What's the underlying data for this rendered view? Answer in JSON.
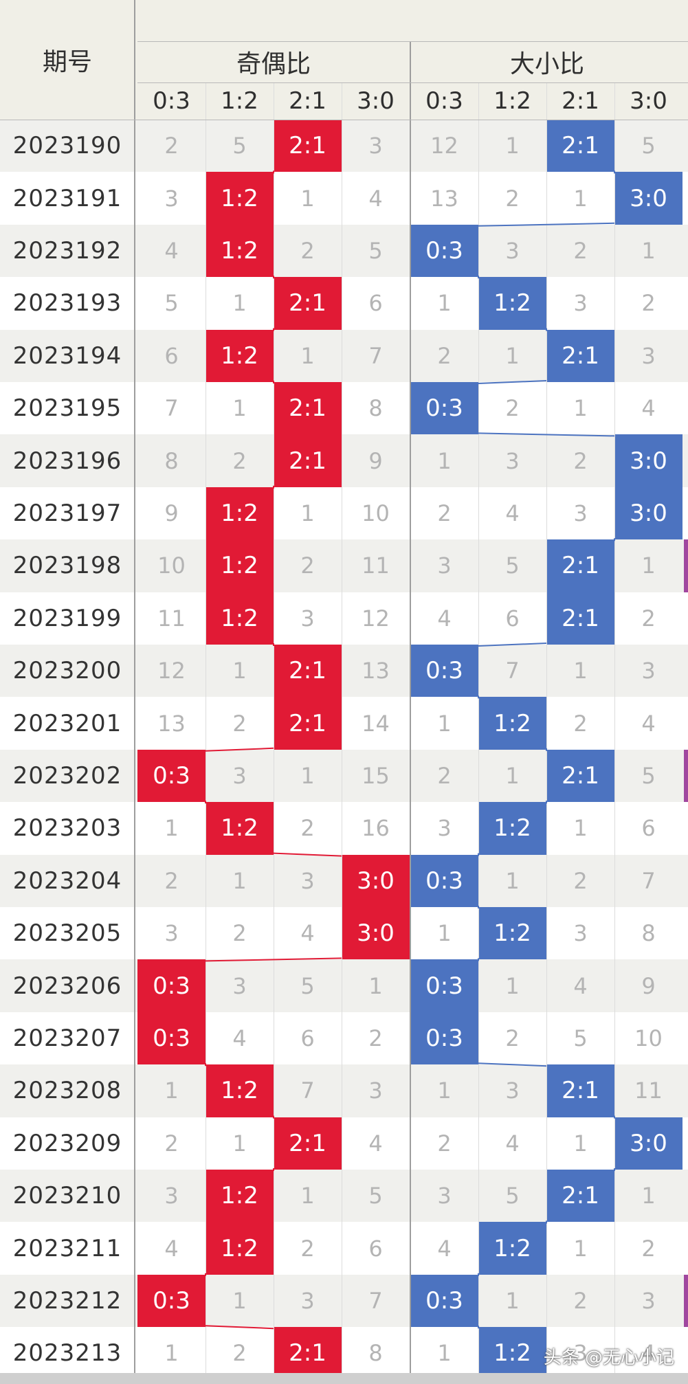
{
  "chart_data": {
    "type": "table",
    "header": {
      "period_label": "期号",
      "groups": [
        {
          "name": "奇偶比",
          "cols": [
            "0:3",
            "1:2",
            "2:1",
            "3:0"
          ]
        },
        {
          "name": "大小比",
          "cols": [
            "0:3",
            "1:2",
            "2:1",
            "3:0"
          ]
        }
      ]
    },
    "colors": {
      "odd_even_hit": "#e11a35",
      "size_hit": "#4c73c0",
      "header_bg": "#f0efe7"
    },
    "rows": [
      {
        "period": "2023190",
        "odd_even": [
          "2",
          "5",
          "2:1",
          "3"
        ],
        "size": [
          "12",
          "1",
          "2:1",
          "5"
        ]
      },
      {
        "period": "2023191",
        "odd_even": [
          "3",
          "1:2",
          "1",
          "4"
        ],
        "size": [
          "13",
          "2",
          "1",
          "3:0"
        ]
      },
      {
        "period": "2023192",
        "odd_even": [
          "4",
          "1:2",
          "2",
          "5"
        ],
        "size": [
          "0:3",
          "3",
          "2",
          "1"
        ]
      },
      {
        "period": "2023193",
        "odd_even": [
          "5",
          "1",
          "2:1",
          "6"
        ],
        "size": [
          "1",
          "1:2",
          "3",
          "2"
        ]
      },
      {
        "period": "2023194",
        "odd_even": [
          "6",
          "1:2",
          "1",
          "7"
        ],
        "size": [
          "2",
          "1",
          "2:1",
          "3"
        ]
      },
      {
        "period": "2023195",
        "odd_even": [
          "7",
          "1",
          "2:1",
          "8"
        ],
        "size": [
          "0:3",
          "2",
          "1",
          "4"
        ]
      },
      {
        "period": "2023196",
        "odd_even": [
          "8",
          "2",
          "2:1",
          "9"
        ],
        "size": [
          "1",
          "3",
          "2",
          "3:0"
        ]
      },
      {
        "period": "2023197",
        "odd_even": [
          "9",
          "1:2",
          "1",
          "10"
        ],
        "size": [
          "2",
          "4",
          "3",
          "3:0"
        ]
      },
      {
        "period": "2023198",
        "odd_even": [
          "10",
          "1:2",
          "2",
          "11"
        ],
        "size": [
          "3",
          "5",
          "2:1",
          "1"
        ]
      },
      {
        "period": "2023199",
        "odd_even": [
          "11",
          "1:2",
          "3",
          "12"
        ],
        "size": [
          "4",
          "6",
          "2:1",
          "2"
        ]
      },
      {
        "period": "2023200",
        "odd_even": [
          "12",
          "1",
          "2:1",
          "13"
        ],
        "size": [
          "0:3",
          "7",
          "1",
          "3"
        ]
      },
      {
        "period": "2023201",
        "odd_even": [
          "13",
          "2",
          "2:1",
          "14"
        ],
        "size": [
          "1",
          "1:2",
          "2",
          "4"
        ]
      },
      {
        "period": "2023202",
        "odd_even": [
          "0:3",
          "3",
          "1",
          "15"
        ],
        "size": [
          "2",
          "1",
          "2:1",
          "5"
        ]
      },
      {
        "period": "2023203",
        "odd_even": [
          "1",
          "1:2",
          "2",
          "16"
        ],
        "size": [
          "3",
          "1:2",
          "1",
          "6"
        ]
      },
      {
        "period": "2023204",
        "odd_even": [
          "2",
          "1",
          "3",
          "3:0"
        ],
        "size": [
          "0:3",
          "1",
          "2",
          "7"
        ]
      },
      {
        "period": "2023205",
        "odd_even": [
          "3",
          "2",
          "4",
          "3:0"
        ],
        "size": [
          "1",
          "1:2",
          "3",
          "8"
        ]
      },
      {
        "period": "2023206",
        "odd_even": [
          "0:3",
          "3",
          "5",
          "1"
        ],
        "size": [
          "0:3",
          "1",
          "4",
          "9"
        ]
      },
      {
        "period": "2023207",
        "odd_even": [
          "0:3",
          "4",
          "6",
          "2"
        ],
        "size": [
          "0:3",
          "2",
          "5",
          "10"
        ]
      },
      {
        "period": "2023208",
        "odd_even": [
          "1",
          "1:2",
          "7",
          "3"
        ],
        "size": [
          "1",
          "3",
          "2:1",
          "11"
        ]
      },
      {
        "period": "2023209",
        "odd_even": [
          "2",
          "1",
          "2:1",
          "4"
        ],
        "size": [
          "2",
          "4",
          "1",
          "3:0"
        ]
      },
      {
        "period": "2023210",
        "odd_even": [
          "3",
          "1:2",
          "1",
          "5"
        ],
        "size": [
          "3",
          "5",
          "2:1",
          "1"
        ]
      },
      {
        "period": "2023211",
        "odd_even": [
          "4",
          "1:2",
          "2",
          "6"
        ],
        "size": [
          "4",
          "1:2",
          "1",
          "2"
        ]
      },
      {
        "period": "2023212",
        "odd_even": [
          "0:3",
          "1",
          "3",
          "7"
        ],
        "size": [
          "0:3",
          "1",
          "2",
          "3"
        ]
      },
      {
        "period": "2023213",
        "odd_even": [
          "1",
          "2",
          "2:1",
          "8"
        ],
        "size": [
          "1",
          "1:2",
          "3",
          "4"
        ]
      }
    ]
  },
  "watermark": "头条 @无心小记"
}
